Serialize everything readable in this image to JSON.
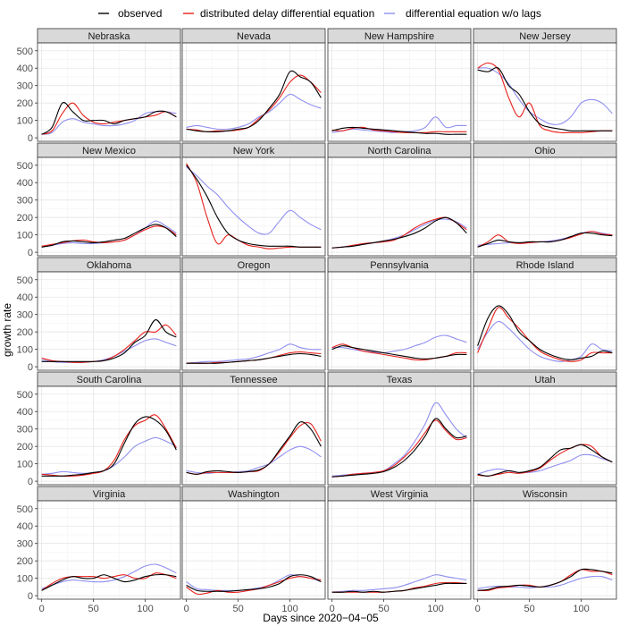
{
  "chart_data": {
    "type": "line",
    "xlabel": "Days since 2020−04−05",
    "ylabel": "growth rate",
    "xlim": [
      -4,
      134
    ],
    "ylim": [
      -20,
      545
    ],
    "x_ticks": [
      0,
      50,
      100
    ],
    "y_ticks": [
      0,
      100,
      200,
      300,
      400,
      500
    ],
    "grid": true,
    "legend_position": "top",
    "series": [
      {
        "key": "obs",
        "name": "observed",
        "color": "#000000"
      },
      {
        "key": "dde",
        "name": "distributed delay differential equation",
        "color": "#e8201b"
      },
      {
        "key": "nolag",
        "name": "differential equation w/o lags",
        "color": "#8f8ff0"
      }
    ],
    "x": [
      0,
      10,
      20,
      30,
      40,
      50,
      60,
      70,
      80,
      90,
      100,
      110,
      120,
      130
    ],
    "panels": [
      {
        "state": "Nebraska",
        "obs": [
          20,
          60,
          200,
          150,
          100,
          100,
          100,
          80,
          100,
          110,
          120,
          150,
          150,
          120
        ],
        "dde": [
          20,
          40,
          140,
          200,
          130,
          90,
          80,
          90,
          100,
          110,
          120,
          130,
          150,
          120
        ],
        "nolag": [
          20,
          30,
          90,
          110,
          90,
          80,
          70,
          70,
          80,
          100,
          140,
          150,
          150,
          140
        ]
      },
      {
        "state": "Nevada",
        "obs": [
          50,
          40,
          35,
          35,
          40,
          50,
          60,
          100,
          170,
          250,
          380,
          350,
          320,
          230
        ],
        "dde": [
          50,
          45,
          35,
          40,
          40,
          45,
          60,
          110,
          160,
          230,
          320,
          360,
          320,
          260
        ],
        "nolag": [
          60,
          70,
          60,
          50,
          50,
          60,
          80,
          120,
          150,
          200,
          250,
          220,
          190,
          170
        ]
      },
      {
        "state": "New Hampshire",
        "obs": [
          40,
          55,
          60,
          55,
          50,
          45,
          40,
          35,
          30,
          25,
          25,
          20,
          20,
          20
        ],
        "dde": [
          45,
          40,
          55,
          60,
          45,
          40,
          35,
          30,
          30,
          30,
          35,
          35,
          35,
          35
        ],
        "nolag": [
          30,
          40,
          50,
          45,
          40,
          35,
          30,
          35,
          40,
          60,
          120,
          60,
          70,
          70
        ]
      },
      {
        "state": "New Jersey",
        "obs": [
          390,
          380,
          400,
          300,
          250,
          150,
          80,
          60,
          50,
          40,
          40,
          40,
          40,
          40
        ],
        "dde": [
          400,
          430,
          390,
          230,
          120,
          200,
          70,
          40,
          30,
          30,
          30,
          35,
          40,
          40
        ],
        "nolag": [
          400,
          400,
          370,
          310,
          220,
          150,
          110,
          80,
          80,
          120,
          200,
          220,
          200,
          140
        ]
      },
      {
        "state": "New Mexico",
        "obs": [
          30,
          40,
          60,
          65,
          60,
          55,
          60,
          70,
          80,
          110,
          140,
          160,
          140,
          90
        ],
        "dde": [
          35,
          45,
          55,
          65,
          70,
          60,
          55,
          60,
          70,
          100,
          130,
          150,
          140,
          100
        ],
        "nolag": [
          30,
          40,
          50,
          55,
          50,
          50,
          55,
          60,
          70,
          100,
          140,
          180,
          150,
          110
        ]
      },
      {
        "state": "New York",
        "obs": [
          500,
          420,
          320,
          200,
          110,
          70,
          50,
          40,
          35,
          35,
          35,
          30,
          30,
          30
        ],
        "dde": [
          510,
          400,
          200,
          50,
          100,
          70,
          40,
          30,
          20,
          25,
          30,
          30,
          30,
          30
        ],
        "nolag": [
          490,
          440,
          380,
          330,
          260,
          200,
          150,
          110,
          110,
          180,
          240,
          200,
          160,
          130
        ]
      },
      {
        "state": "North Carolina",
        "obs": [
          25,
          30,
          35,
          45,
          55,
          65,
          75,
          90,
          110,
          140,
          180,
          200,
          170,
          110
        ],
        "dde": [
          25,
          30,
          40,
          50,
          55,
          60,
          70,
          100,
          140,
          170,
          190,
          200,
          170,
          130
        ],
        "nolag": [
          25,
          30,
          35,
          45,
          55,
          65,
          80,
          100,
          130,
          160,
          185,
          190,
          175,
          140
        ]
      },
      {
        "state": "Ohio",
        "obs": [
          30,
          50,
          70,
          60,
          55,
          60,
          60,
          60,
          70,
          90,
          110,
          110,
          100,
          95
        ],
        "dde": [
          30,
          60,
          100,
          60,
          50,
          55,
          60,
          60,
          70,
          85,
          105,
          120,
          105,
          100
        ],
        "nolag": [
          40,
          45,
          50,
          55,
          55,
          55,
          60,
          65,
          75,
          90,
          110,
          120,
          110,
          100
        ]
      },
      {
        "state": "Oklahoma",
        "obs": [
          30,
          30,
          30,
          30,
          30,
          30,
          35,
          50,
          80,
          140,
          180,
          270,
          200,
          170
        ],
        "dde": [
          50,
          35,
          30,
          25,
          25,
          30,
          35,
          60,
          100,
          150,
          200,
          200,
          240,
          180
        ],
        "nolag": [
          40,
          30,
          25,
          25,
          25,
          30,
          40,
          60,
          90,
          120,
          150,
          160,
          140,
          120
        ]
      },
      {
        "state": "Oregon",
        "obs": [
          20,
          20,
          20,
          20,
          25,
          30,
          35,
          40,
          50,
          60,
          70,
          75,
          70,
          60
        ],
        "dde": [
          20,
          20,
          20,
          25,
          25,
          30,
          35,
          40,
          50,
          65,
          80,
          85,
          80,
          75
        ],
        "nolag": [
          20,
          25,
          30,
          30,
          35,
          40,
          45,
          60,
          80,
          100,
          130,
          110,
          100,
          100
        ]
      },
      {
        "state": "Pennsylvania",
        "obs": [
          100,
          120,
          110,
          100,
          90,
          80,
          70,
          60,
          50,
          45,
          50,
          60,
          70,
          70
        ],
        "dde": [
          110,
          130,
          110,
          90,
          80,
          70,
          60,
          50,
          40,
          40,
          50,
          60,
          80,
          80
        ],
        "nolag": [
          110,
          110,
          100,
          90,
          85,
          80,
          90,
          100,
          120,
          140,
          170,
          180,
          160,
          140
        ]
      },
      {
        "state": "Rhode Island",
        "obs": [
          120,
          280,
          350,
          300,
          200,
          150,
          100,
          70,
          50,
          40,
          50,
          60,
          90,
          80
        ],
        "dde": [
          80,
          220,
          340,
          280,
          220,
          150,
          90,
          60,
          40,
          30,
          40,
          80,
          80,
          80
        ],
        "nolag": [
          100,
          200,
          260,
          220,
          160,
          100,
          60,
          40,
          30,
          40,
          60,
          130,
          100,
          90
        ]
      },
      {
        "state": "South Carolina",
        "obs": [
          30,
          30,
          30,
          35,
          40,
          50,
          60,
          100,
          220,
          330,
          370,
          350,
          290,
          180
        ],
        "dde": [
          40,
          35,
          30,
          30,
          35,
          45,
          60,
          120,
          240,
          320,
          350,
          380,
          300,
          190
        ],
        "nolag": [
          40,
          45,
          55,
          50,
          45,
          50,
          60,
          90,
          140,
          200,
          230,
          250,
          230,
          200
        ]
      },
      {
        "state": "Tennessee",
        "obs": [
          50,
          40,
          55,
          60,
          55,
          50,
          55,
          65,
          100,
          180,
          260,
          340,
          300,
          200
        ],
        "dde": [
          50,
          40,
          50,
          50,
          50,
          50,
          55,
          60,
          100,
          170,
          250,
          320,
          330,
          230
        ],
        "nolag": [
          60,
          50,
          45,
          50,
          50,
          55,
          60,
          80,
          100,
          140,
          180,
          200,
          180,
          140
        ]
      },
      {
        "state": "Texas",
        "obs": [
          25,
          30,
          35,
          40,
          45,
          55,
          80,
          120,
          180,
          260,
          360,
          300,
          250,
          260
        ],
        "dde": [
          25,
          30,
          40,
          45,
          50,
          60,
          90,
          140,
          200,
          280,
          350,
          290,
          240,
          250
        ],
        "nolag": [
          30,
          35,
          40,
          45,
          50,
          60,
          100,
          150,
          230,
          330,
          450,
          380,
          300,
          250
        ]
      },
      {
        "state": "Utah",
        "obs": [
          40,
          30,
          45,
          60,
          50,
          60,
          80,
          130,
          180,
          190,
          210,
          180,
          140,
          110
        ],
        "dde": [
          35,
          30,
          40,
          50,
          45,
          55,
          75,
          120,
          160,
          190,
          210,
          200,
          140,
          110
        ],
        "nolag": [
          40,
          60,
          70,
          60,
          50,
          50,
          60,
          80,
          100,
          120,
          150,
          150,
          130,
          110
        ]
      },
      {
        "state": "Virginia",
        "obs": [
          30,
          60,
          90,
          110,
          100,
          100,
          120,
          100,
          80,
          90,
          110,
          120,
          120,
          110
        ],
        "dde": [
          30,
          70,
          100,
          110,
          110,
          110,
          100,
          110,
          120,
          100,
          100,
          130,
          120,
          100
        ],
        "nolag": [
          40,
          60,
          80,
          90,
          85,
          80,
          80,
          90,
          110,
          140,
          170,
          180,
          160,
          130
        ]
      },
      {
        "state": "Washington",
        "obs": [
          60,
          30,
          25,
          25,
          25,
          30,
          35,
          40,
          50,
          70,
          110,
          120,
          110,
          80
        ],
        "dde": [
          50,
          10,
          15,
          30,
          20,
          20,
          30,
          40,
          60,
          80,
          100,
          110,
          100,
          90
        ],
        "nolag": [
          80,
          40,
          35,
          30,
          30,
          30,
          35,
          45,
          60,
          90,
          120,
          110,
          100,
          80
        ]
      },
      {
        "state": "West Virginia",
        "obs": [
          20,
          20,
          25,
          20,
          25,
          20,
          25,
          30,
          40,
          50,
          60,
          70,
          70,
          70
        ],
        "dde": [
          20,
          20,
          20,
          20,
          20,
          20,
          25,
          30,
          45,
          55,
          70,
          75,
          75,
          70
        ],
        "nolag": [
          20,
          25,
          30,
          30,
          35,
          40,
          45,
          60,
          80,
          100,
          120,
          110,
          100,
          90
        ]
      },
      {
        "state": "Wisconsin",
        "obs": [
          30,
          35,
          50,
          55,
          60,
          55,
          50,
          60,
          80,
          110,
          150,
          150,
          140,
          130
        ],
        "dde": [
          30,
          30,
          45,
          50,
          60,
          60,
          50,
          60,
          80,
          120,
          150,
          140,
          140,
          120
        ],
        "nolag": [
          40,
          50,
          55,
          50,
          50,
          45,
          50,
          50,
          60,
          80,
          100,
          110,
          110,
          90
        ]
      }
    ]
  }
}
